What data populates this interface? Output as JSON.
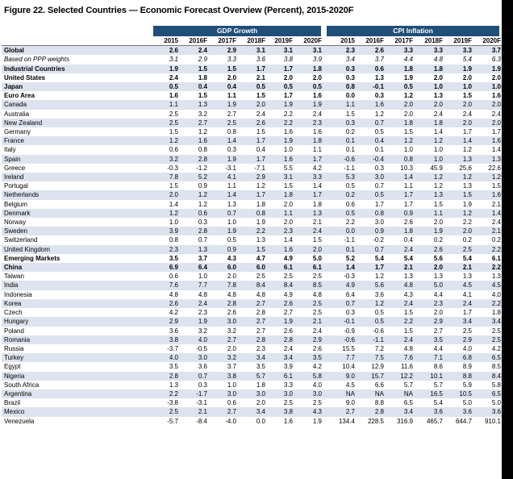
{
  "title": "Figure 22. Selected Countries — Economic Forecast Overview (Percent), 2015-2020F",
  "groups": {
    "gdp": "GDP Growth",
    "cpi": "CPI Inflation"
  },
  "years": [
    "2015",
    "2016F",
    "2017F",
    "2018F",
    "2019F",
    "2020F"
  ],
  "rows": [
    {
      "name": "Global",
      "style": "bold shade",
      "gdp": [
        "2.6",
        "2.4",
        "2.9",
        "3.1",
        "3.1",
        "3.1"
      ],
      "cpi": [
        "2.3",
        "2.6",
        "3.3",
        "3.3",
        "3.3",
        "3.7"
      ]
    },
    {
      "name": "Based on PPP weights",
      "style": "italic",
      "gdp": [
        "3.1",
        "2.9",
        "3.3",
        "3.6",
        "3.8",
        "3.9"
      ],
      "cpi": [
        "3.4",
        "3.7",
        "4.4",
        "4.8",
        "5.4",
        "6.3"
      ]
    },
    {
      "name": "Industrial Countries",
      "style": "bold shade",
      "gdp": [
        "1.9",
        "1.5",
        "1.5",
        "1.7",
        "1.7",
        "1.8"
      ],
      "cpi": [
        "0.3",
        "0.6",
        "1.8",
        "1.8",
        "1.9",
        "1.9"
      ]
    },
    {
      "name": "United States",
      "style": "bold",
      "gdp": [
        "2.4",
        "1.8",
        "2.0",
        "2.1",
        "2.0",
        "2.0"
      ],
      "cpi": [
        "0.3",
        "1.3",
        "1.9",
        "2.0",
        "2.0",
        "2.0"
      ]
    },
    {
      "name": "Japan",
      "style": "bold shade",
      "gdp": [
        "0.5",
        "0.4",
        "0.4",
        "0.5",
        "0.5",
        "0.5"
      ],
      "cpi": [
        "0.8",
        "-0.1",
        "0.5",
        "1.0",
        "1.0",
        "1.0"
      ]
    },
    {
      "name": "Euro Area",
      "style": "bold",
      "gdp": [
        "1.6",
        "1.5",
        "1.1",
        "1.5",
        "1.7",
        "1.6"
      ],
      "cpi": [
        "0.0",
        "0.3",
        "1.2",
        "1.3",
        "1.5",
        "1.6"
      ]
    },
    {
      "name": "Canada",
      "style": "shade",
      "gdp": [
        "1.1",
        "1.3",
        "1.9",
        "2.0",
        "1.9",
        "1.9"
      ],
      "cpi": [
        "1.1",
        "1.6",
        "2.0",
        "2.0",
        "2.0",
        "2.0"
      ]
    },
    {
      "name": "Australia",
      "style": "",
      "gdp": [
        "2.5",
        "3.2",
        "2.7",
        "2.4",
        "2.2",
        "2.4"
      ],
      "cpi": [
        "1.5",
        "1.2",
        "2.0",
        "2.4",
        "2.4",
        "2.4"
      ]
    },
    {
      "name": "New Zealand",
      "style": "shade",
      "gdp": [
        "2.5",
        "2.7",
        "2.5",
        "2.6",
        "2.2",
        "2.3"
      ],
      "cpi": [
        "0.3",
        "0.7",
        "1.8",
        "1.8",
        "2.0",
        "2.0"
      ]
    },
    {
      "name": "Germany",
      "style": "",
      "gdp": [
        "1.5",
        "1.2",
        "0.8",
        "1.5",
        "1.6",
        "1.6"
      ],
      "cpi": [
        "0.2",
        "0.5",
        "1.5",
        "1.4",
        "1.7",
        "1.7"
      ]
    },
    {
      "name": "France",
      "style": "shade",
      "gdp": [
        "1.2",
        "1.6",
        "1.4",
        "1.7",
        "1.9",
        "1.8"
      ],
      "cpi": [
        "0.1",
        "0.4",
        "1.2",
        "1.2",
        "1.4",
        "1.6"
      ]
    },
    {
      "name": "Italy",
      "style": "",
      "gdp": [
        "0.6",
        "0.8",
        "0.3",
        "0.4",
        "1.0",
        "1.1"
      ],
      "cpi": [
        "0.1",
        "0.1",
        "1.0",
        "1.0",
        "1.2",
        "1.4"
      ]
    },
    {
      "name": "Spain",
      "style": "shade",
      "gdp": [
        "3.2",
        "2.8",
        "1.9",
        "1.7",
        "1.6",
        "1.7"
      ],
      "cpi": [
        "-0.6",
        "-0.4",
        "0.8",
        "1.0",
        "1.3",
        "1.3"
      ]
    },
    {
      "name": "Greece",
      "style": "",
      "gdp": [
        "-0.3",
        "-1.2",
        "-3.1",
        "-7.1",
        "5.5",
        "4.2"
      ],
      "cpi": [
        "-1.1",
        "0.3",
        "10.3",
        "45.9",
        "25.6",
        "22.6"
      ]
    },
    {
      "name": "Ireland",
      "style": "shade",
      "gdp": [
        "7.8",
        "5.2",
        "4.1",
        "2.9",
        "3.1",
        "3.3"
      ],
      "cpi": [
        "5.3",
        "3.0",
        "1.4",
        "1.2",
        "1.2",
        "1.2"
      ]
    },
    {
      "name": "Portugal",
      "style": "",
      "gdp": [
        "1.5",
        "0.9",
        "1.1",
        "1.2",
        "1.5",
        "1.4"
      ],
      "cpi": [
        "0.5",
        "0.7",
        "1.1",
        "1.2",
        "1.3",
        "1.5"
      ]
    },
    {
      "name": "Netherlands",
      "style": "shade",
      "gdp": [
        "2.0",
        "1.2",
        "1.4",
        "1.7",
        "1.8",
        "1.7"
      ],
      "cpi": [
        "0.2",
        "0.5",
        "1.7",
        "1.3",
        "1.5",
        "1.6"
      ]
    },
    {
      "name": "Belgium",
      "style": "",
      "gdp": [
        "1.4",
        "1.2",
        "1.3",
        "1.8",
        "2.0",
        "1.8"
      ],
      "cpi": [
        "0.6",
        "1.7",
        "1.7",
        "1.5",
        "1.9",
        "2.1"
      ]
    },
    {
      "name": "Denmark",
      "style": "shade",
      "gdp": [
        "1.2",
        "0.6",
        "0.7",
        "0.8",
        "1.1",
        "1.3"
      ],
      "cpi": [
        "0.5",
        "0.8",
        "0.9",
        "1.1",
        "1.2",
        "1.4"
      ]
    },
    {
      "name": "Norway",
      "style": "",
      "gdp": [
        "1.0",
        "0.3",
        "1.0",
        "1.9",
        "2.0",
        "2.1"
      ],
      "cpi": [
        "2.2",
        "3.0",
        "2.6",
        "2.0",
        "2.2",
        "2.4"
      ]
    },
    {
      "name": "Sweden",
      "style": "shade",
      "gdp": [
        "3.9",
        "2.8",
        "1.9",
        "2.2",
        "2.3",
        "2.4"
      ],
      "cpi": [
        "0.0",
        "0.9",
        "1.8",
        "1.9",
        "2.0",
        "2.1"
      ]
    },
    {
      "name": "Switzerland",
      "style": "",
      "gdp": [
        "0.8",
        "0.7",
        "0.5",
        "1.3",
        "1.4",
        "1.5"
      ],
      "cpi": [
        "-1.1",
        "-0.2",
        "0.4",
        "0.2",
        "0.2",
        "0.2"
      ]
    },
    {
      "name": "United Kingdom",
      "style": "shade",
      "gdp": [
        "2.3",
        "1.3",
        "0.9",
        "1.5",
        "1.6",
        "2.0"
      ],
      "cpi": [
        "0.1",
        "0.7",
        "2.4",
        "2.6",
        "2.5",
        "2.2"
      ]
    },
    {
      "name": "Emerging Markets",
      "style": "bold",
      "gdp": [
        "3.5",
        "3.7",
        "4.3",
        "4.7",
        "4.9",
        "5.0"
      ],
      "cpi": [
        "5.2",
        "5.4",
        "5.4",
        "5.6",
        "5.4",
        "6.1"
      ]
    },
    {
      "name": "China",
      "style": "bold shade",
      "gdp": [
        "6.9",
        "6.4",
        "6.0",
        "6.0",
        "6.1",
        "6.1"
      ],
      "cpi": [
        "1.4",
        "1.7",
        "2.1",
        "2.0",
        "2.1",
        "2.2"
      ]
    },
    {
      "name": "Taiwan",
      "style": "",
      "gdp": [
        "0.6",
        "1.0",
        "2.0",
        "2.5",
        "2.5",
        "2.5"
      ],
      "cpi": [
        "-0.3",
        "1.2",
        "1.3",
        "1.3",
        "1.3",
        "1.3"
      ]
    },
    {
      "name": "India",
      "style": "shade",
      "gdp": [
        "7.6",
        "7.7",
        "7.8",
        "8.4",
        "8.4",
        "8.5"
      ],
      "cpi": [
        "4.9",
        "5.6",
        "4.8",
        "5.0",
        "4.5",
        "4.5"
      ]
    },
    {
      "name": "Indonesia",
      "style": "",
      "gdp": [
        "4.8",
        "4.8",
        "4.8",
        "4.8",
        "4.9",
        "4.8"
      ],
      "cpi": [
        "6.4",
        "3.6",
        "4.3",
        "4.4",
        "4.1",
        "4.0"
      ]
    },
    {
      "name": "Korea",
      "style": "shade",
      "gdp": [
        "2.6",
        "2.4",
        "2.8",
        "2.7",
        "2.6",
        "2.5"
      ],
      "cpi": [
        "0.7",
        "1.2",
        "2.4",
        "2.3",
        "2.4",
        "2.2"
      ]
    },
    {
      "name": "Czech",
      "style": "",
      "gdp": [
        "4.2",
        "2.3",
        "2.6",
        "2.8",
        "2.7",
        "2.5"
      ],
      "cpi": [
        "0.3",
        "0.5",
        "1.5",
        "2.0",
        "1.7",
        "1.8"
      ]
    },
    {
      "name": "Hungary",
      "style": "shade",
      "gdp": [
        "2.9",
        "1.9",
        "3.0",
        "2.7",
        "1.9",
        "2.1"
      ],
      "cpi": [
        "-0.1",
        "0.5",
        "2.2",
        "2.9",
        "3.4",
        "3.4"
      ]
    },
    {
      "name": "Poland",
      "style": "",
      "gdp": [
        "3.6",
        "3.2",
        "3.2",
        "2.7",
        "2.6",
        "2.4"
      ],
      "cpi": [
        "-0.9",
        "-0.6",
        "1.5",
        "2.7",
        "2.5",
        "2.5"
      ]
    },
    {
      "name": "Romania",
      "style": "shade",
      "gdp": [
        "3.8",
        "4.0",
        "2.7",
        "2.8",
        "2.8",
        "2.9"
      ],
      "cpi": [
        "-0.6",
        "-1.1",
        "2.4",
        "3.5",
        "2.9",
        "2.5"
      ]
    },
    {
      "name": "Russia",
      "style": "",
      "gdp": [
        "-3.7",
        "-0.5",
        "2.0",
        "2.3",
        "2.4",
        "2.6"
      ],
      "cpi": [
        "15.5",
        "7.2",
        "4.8",
        "4.4",
        "4.0",
        "4.2"
      ]
    },
    {
      "name": "Turkey",
      "style": "shade",
      "gdp": [
        "4.0",
        "3.0",
        "3.2",
        "3.4",
        "3.4",
        "3.5"
      ],
      "cpi": [
        "7.7",
        "7.5",
        "7.6",
        "7.1",
        "6.8",
        "6.5"
      ]
    },
    {
      "name": "Egypt",
      "style": "",
      "gdp": [
        "3.5",
        "3.6",
        "3.7",
        "3.5",
        "3.9",
        "4.2"
      ],
      "cpi": [
        "10.4",
        "12.9",
        "11.6",
        "8.6",
        "8.9",
        "8.5"
      ]
    },
    {
      "name": "Nigeria",
      "style": "shade",
      "gdp": [
        "2.8",
        "0.7",
        "3.8",
        "5.7",
        "6.1",
        "5.8"
      ],
      "cpi": [
        "9.0",
        "15.7",
        "12.2",
        "10.1",
        "8.8",
        "8.4"
      ]
    },
    {
      "name": "South Africa",
      "style": "",
      "gdp": [
        "1.3",
        "0.3",
        "1.0",
        "1.8",
        "3.3",
        "4.0"
      ],
      "cpi": [
        "4.5",
        "6.6",
        "5.7",
        "5.7",
        "5.9",
        "5.8"
      ]
    },
    {
      "name": "Argentina",
      "style": "shade",
      "gdp": [
        "2.2",
        "-1.7",
        "3.0",
        "3.0",
        "3.0",
        "3.0"
      ],
      "cpi": [
        "NA",
        "NA",
        "NA",
        "16.5",
        "10.5",
        "6.5"
      ]
    },
    {
      "name": "Brazil",
      "style": "",
      "gdp": [
        "-3.8",
        "-3.1",
        "0.6",
        "2.0",
        "2.5",
        "2.5"
      ],
      "cpi": [
        "9.0",
        "8.8",
        "6.5",
        "5.4",
        "5.0",
        "5.0"
      ]
    },
    {
      "name": "Mexico",
      "style": "shade",
      "gdp": [
        "2.5",
        "2.1",
        "2.7",
        "3.4",
        "3.8",
        "4.3"
      ],
      "cpi": [
        "2.7",
        "2.8",
        "3.4",
        "3.6",
        "3.6",
        "3.6"
      ]
    },
    {
      "name": "Venezuela",
      "style": "",
      "gdp": [
        "-5.7",
        "-8.4",
        "-4.0",
        "0.0",
        "1.6",
        "1.9"
      ],
      "cpi": [
        "134.4",
        "228.5",
        "316.9",
        "465.7",
        "644.7",
        "910.1"
      ]
    }
  ]
}
